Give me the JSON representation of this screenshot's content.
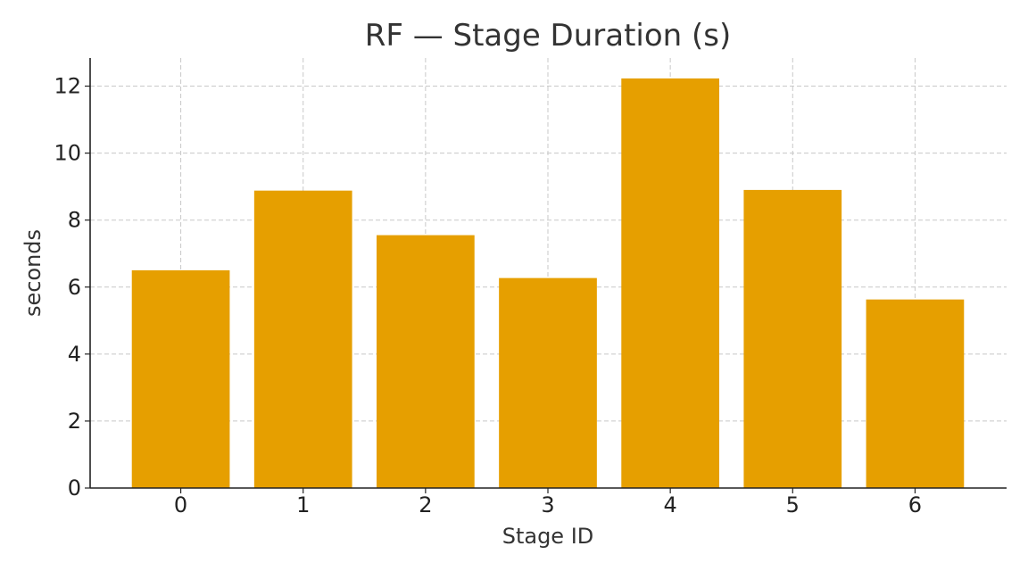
{
  "chart_data": {
    "type": "bar",
    "title": "RF — Stage Duration (s)",
    "xlabel": "Stage ID",
    "ylabel": "seconds",
    "categories": [
      "0",
      "1",
      "2",
      "3",
      "4",
      "5",
      "6"
    ],
    "values": [
      6.5,
      8.88,
      7.55,
      6.27,
      12.23,
      8.9,
      5.63
    ],
    "yticks": [
      0,
      2,
      4,
      6,
      8,
      10,
      12
    ],
    "ylim": [
      0,
      12.84
    ],
    "grid": true,
    "bar_color": "#E69F00"
  }
}
